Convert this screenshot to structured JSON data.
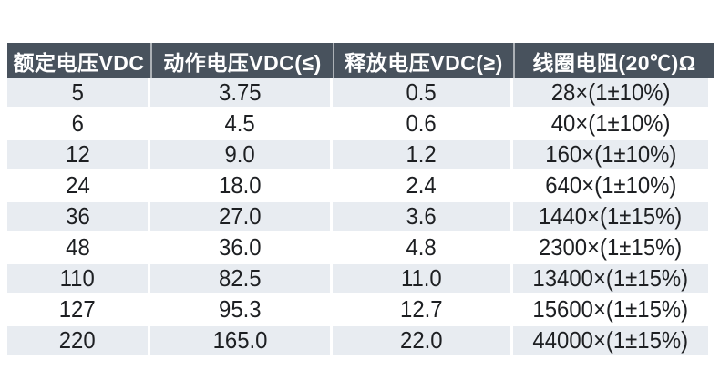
{
  "colors": {
    "header_bg": "#48525d",
    "header_text": "#ffffff",
    "row_alt_bg": "#e8ecf1",
    "body_text": "#1d1f22",
    "page_bg": "#ffffff"
  },
  "table": {
    "headers": [
      "额定电压VDC",
      "动作电压VDC(≤)",
      "释放电压VDC(≥)",
      "线圈电阻(20℃)Ω"
    ],
    "rows": [
      [
        "5",
        "3.75",
        "0.5",
        "28×(1±10%)"
      ],
      [
        "6",
        "4.5",
        "0.6",
        "40×(1±10%)"
      ],
      [
        "12",
        "9.0",
        "1.2",
        "160×(1±10%)"
      ],
      [
        "24",
        "18.0",
        "2.4",
        "640×(1±10%)"
      ],
      [
        "36",
        "27.0",
        "3.6",
        "1440×(1±15%)"
      ],
      [
        "48",
        "36.0",
        "4.8",
        "2300×(1±15%)"
      ],
      [
        "110",
        "82.5",
        "11.0",
        "13400×(1±15%)"
      ],
      [
        "127",
        "95.3",
        "12.7",
        "15600×(1±15%)"
      ],
      [
        "220",
        "165.0",
        "22.0",
        "44000×(1±15%)"
      ]
    ]
  }
}
